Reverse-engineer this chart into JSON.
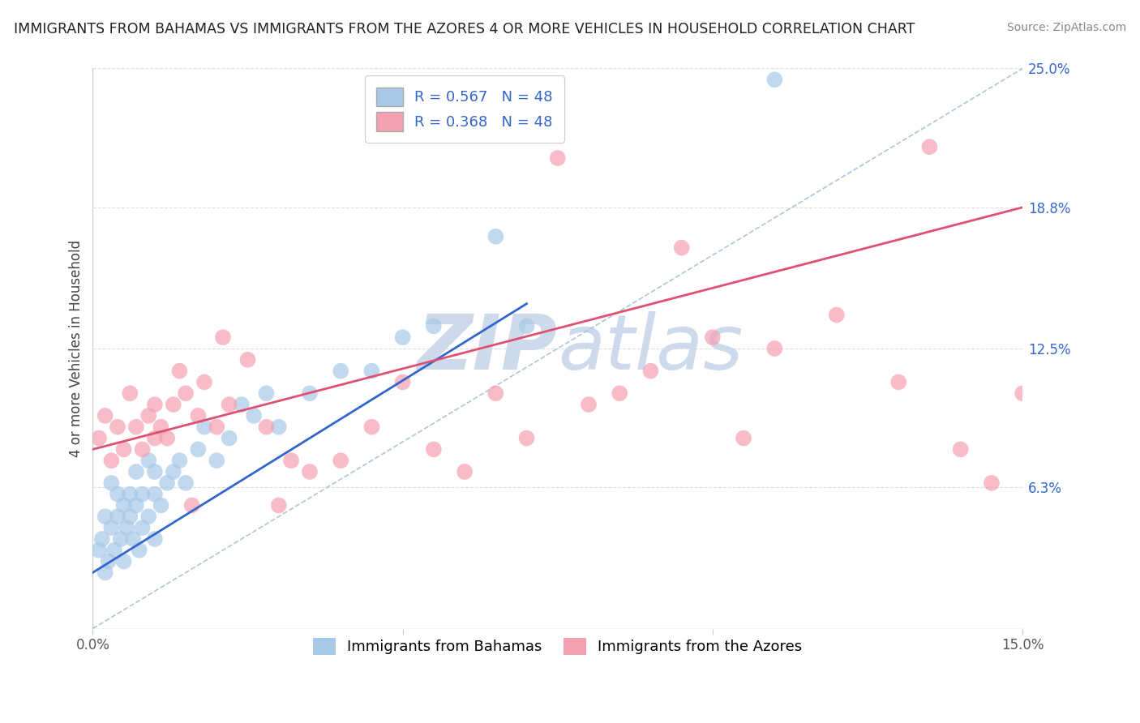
{
  "title": "IMMIGRANTS FROM BAHAMAS VS IMMIGRANTS FROM THE AZORES 4 OR MORE VEHICLES IN HOUSEHOLD CORRELATION CHART",
  "source": "Source: ZipAtlas.com",
  "xlabel_blue": "Immigrants from Bahamas",
  "xlabel_pink": "Immigrants from the Azores",
  "ylabel": "4 or more Vehicles in Household",
  "xlim": [
    0.0,
    15.0
  ],
  "ylim": [
    0.0,
    25.0
  ],
  "ytick_vals": [
    6.3,
    12.5,
    18.8,
    25.0
  ],
  "blue_R": 0.567,
  "blue_N": 48,
  "pink_R": 0.368,
  "pink_N": 48,
  "blue_color": "#a8c8e8",
  "pink_color": "#f4a0b0",
  "blue_trend_color": "#3366cc",
  "pink_trend_color": "#e05070",
  "ref_line_color": "#b0c4d8",
  "watermark_color": "#cddaeb",
  "background_color": "#ffffff",
  "blue_scatter_x": [
    0.1,
    0.15,
    0.2,
    0.2,
    0.25,
    0.3,
    0.3,
    0.35,
    0.4,
    0.4,
    0.45,
    0.5,
    0.5,
    0.55,
    0.6,
    0.6,
    0.65,
    0.7,
    0.7,
    0.75,
    0.8,
    0.8,
    0.9,
    0.9,
    1.0,
    1.0,
    1.0,
    1.1,
    1.2,
    1.3,
    1.4,
    1.5,
    1.7,
    1.8,
    2.0,
    2.2,
    2.4,
    2.6,
    2.8,
    3.0,
    3.5,
    4.0,
    4.5,
    5.0,
    5.5,
    6.5,
    7.0,
    11.0
  ],
  "blue_scatter_y": [
    3.5,
    4.0,
    2.5,
    5.0,
    3.0,
    4.5,
    6.5,
    3.5,
    5.0,
    6.0,
    4.0,
    3.0,
    5.5,
    4.5,
    5.0,
    6.0,
    4.0,
    5.5,
    7.0,
    3.5,
    4.5,
    6.0,
    5.0,
    7.5,
    4.0,
    6.0,
    7.0,
    5.5,
    6.5,
    7.0,
    7.5,
    6.5,
    8.0,
    9.0,
    7.5,
    8.5,
    10.0,
    9.5,
    10.5,
    9.0,
    10.5,
    11.5,
    11.5,
    13.0,
    13.5,
    17.5,
    13.5,
    24.5
  ],
  "pink_scatter_x": [
    0.1,
    0.2,
    0.3,
    0.4,
    0.5,
    0.6,
    0.7,
    0.8,
    0.9,
    1.0,
    1.0,
    1.1,
    1.2,
    1.3,
    1.4,
    1.5,
    1.6,
    1.7,
    1.8,
    2.0,
    2.1,
    2.2,
    2.5,
    2.8,
    3.0,
    3.2,
    3.5,
    4.0,
    4.5,
    5.0,
    5.5,
    6.0,
    6.5,
    7.0,
    7.5,
    8.0,
    8.5,
    9.0,
    9.5,
    10.0,
    10.5,
    11.0,
    12.0,
    13.0,
    13.5,
    14.0,
    14.5,
    15.0
  ],
  "pink_scatter_y": [
    8.5,
    9.5,
    7.5,
    9.0,
    8.0,
    10.5,
    9.0,
    8.0,
    9.5,
    8.5,
    10.0,
    9.0,
    8.5,
    10.0,
    11.5,
    10.5,
    5.5,
    9.5,
    11.0,
    9.0,
    13.0,
    10.0,
    12.0,
    9.0,
    5.5,
    7.5,
    7.0,
    7.5,
    9.0,
    11.0,
    8.0,
    7.0,
    10.5,
    8.5,
    21.0,
    10.0,
    10.5,
    11.5,
    17.0,
    13.0,
    8.5,
    12.5,
    14.0,
    11.0,
    21.5,
    8.0,
    6.5,
    10.5
  ],
  "blue_trend_x0": 0.0,
  "blue_trend_x1": 7.0,
  "blue_trend_y0": 2.5,
  "blue_trend_y1": 14.5,
  "pink_trend_x0": 0.0,
  "pink_trend_x1": 15.0,
  "pink_trend_y0": 8.0,
  "pink_trend_y1": 18.8
}
